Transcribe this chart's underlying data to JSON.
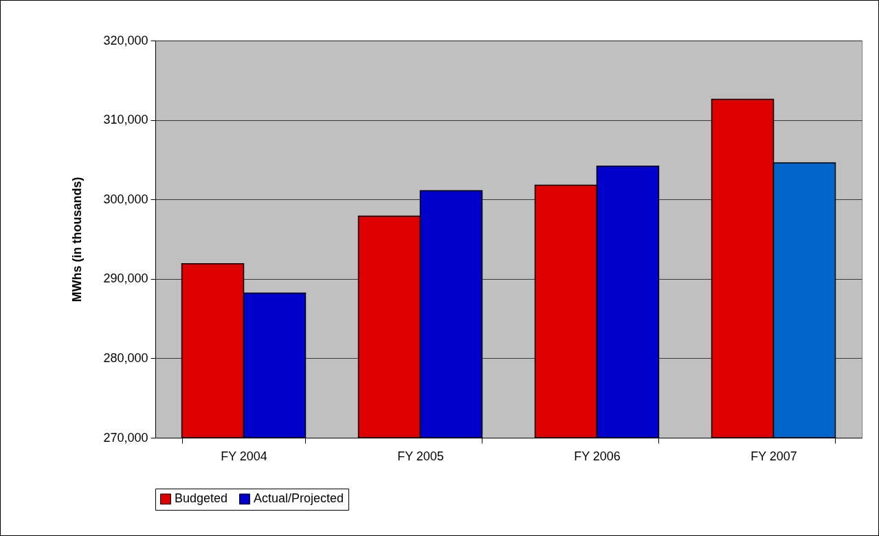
{
  "chart_data": {
    "type": "bar",
    "ylabel": "MWhs (in thousands)",
    "categories": [
      "FY 2004",
      "FY 2005",
      "FY 2006",
      "FY 2007"
    ],
    "series": [
      {
        "name": "Budgeted",
        "color": "#dd0000",
        "values": [
          291900,
          297900,
          301800,
          312600
        ]
      },
      {
        "name": "Actual/Projected",
        "color": "#0000cc",
        "colors": [
          "#0000cc",
          "#0000cc",
          "#0000cc",
          "#0066cc"
        ],
        "values": [
          288200,
          301100,
          304200,
          304600
        ]
      }
    ],
    "ylim": [
      270000,
      320000
    ],
    "yticks": [
      {
        "value": 270000,
        "label": "270,000"
      },
      {
        "value": 280000,
        "label": "280,000"
      },
      {
        "value": 290000,
        "label": "290,000"
      },
      {
        "value": 300000,
        "label": "300,000"
      },
      {
        "value": 310000,
        "label": "310,000"
      },
      {
        "value": 320000,
        "label": "320,000"
      }
    ],
    "grid": "y",
    "legend": "bottom"
  }
}
